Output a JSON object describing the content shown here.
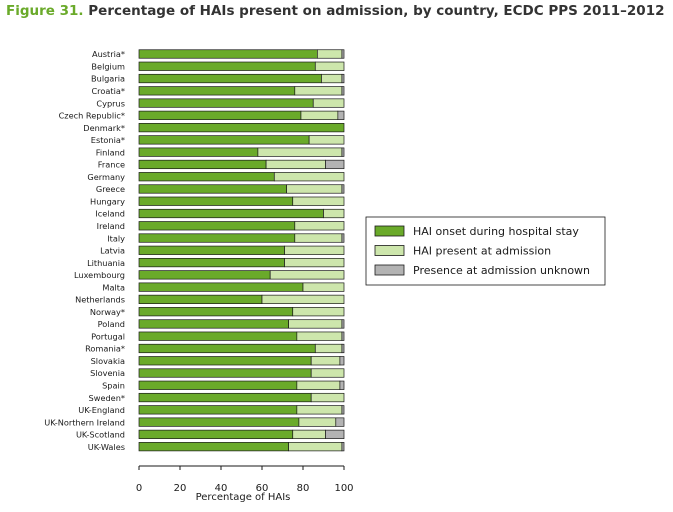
{
  "figure": {
    "number": "Figure 31.",
    "title": "Percentage of HAIs present on admission, by country, ECDC PPS 2011–2012"
  },
  "colors": {
    "onset": "#6aaa2a",
    "present": "#cde6ac",
    "unknown": "#b3b3b3",
    "stroke": "#1a1a1a",
    "text": "#1a1a1a"
  },
  "chart_data": {
    "type": "bar",
    "orientation": "horizontal",
    "stacked": true,
    "title": "Percentage of HAIs present on admission, by country, ECDC PPS 2011–2012",
    "xlabel": "Percentage of HAIs",
    "ylabel": "",
    "xlim": [
      0,
      100
    ],
    "xticks": [
      "0",
      "20",
      "40",
      "60",
      "80",
      "100"
    ],
    "grid": false,
    "legend_position": "right",
    "categories": [
      "Austria*",
      "Belgium",
      "Bulgaria",
      "Croatia*",
      "Cyprus",
      "Czech Republic*",
      "Denmark*",
      "Estonia*",
      "Finland",
      "France",
      "Germany",
      "Greece",
      "Hungary",
      "Iceland",
      "Ireland",
      "Italy",
      "Latvia",
      "Lithuania",
      "Luxembourg",
      "Malta",
      "Netherlands",
      "Norway*",
      "Poland",
      "Portugal",
      "Romania*",
      "Slovakia",
      "Slovenia",
      "Spain",
      "Sweden*",
      "UK-England",
      "UK-Northern Ireland",
      "UK-Scotland",
      "UK-Wales"
    ],
    "series": [
      {
        "name": "HAI onset during hospital stay",
        "values": [
          87,
          86,
          89,
          76,
          85,
          79,
          100,
          83,
          58,
          62,
          66,
          72,
          75,
          90,
          76,
          76,
          71,
          71,
          64,
          80,
          60,
          75,
          73,
          77,
          86,
          84,
          84,
          77,
          84,
          77,
          78,
          75,
          73
        ]
      },
      {
        "name": "HAI present at admission",
        "values": [
          12,
          14,
          10,
          23,
          15,
          18,
          0,
          17,
          41,
          29,
          34,
          27,
          25,
          10,
          24,
          23,
          29,
          29,
          36,
          20,
          40,
          25,
          26,
          22,
          13,
          14,
          16,
          21,
          16,
          22,
          18,
          16,
          26
        ]
      },
      {
        "name": "Presence at admission unknown",
        "values": [
          1,
          0,
          1,
          1,
          0,
          3,
          0,
          0,
          1,
          9,
          0,
          1,
          0,
          0,
          0,
          1,
          0,
          0,
          0,
          0,
          0,
          0,
          1,
          1,
          1,
          2,
          0,
          2,
          0,
          1,
          4,
          9,
          1
        ]
      }
    ]
  }
}
